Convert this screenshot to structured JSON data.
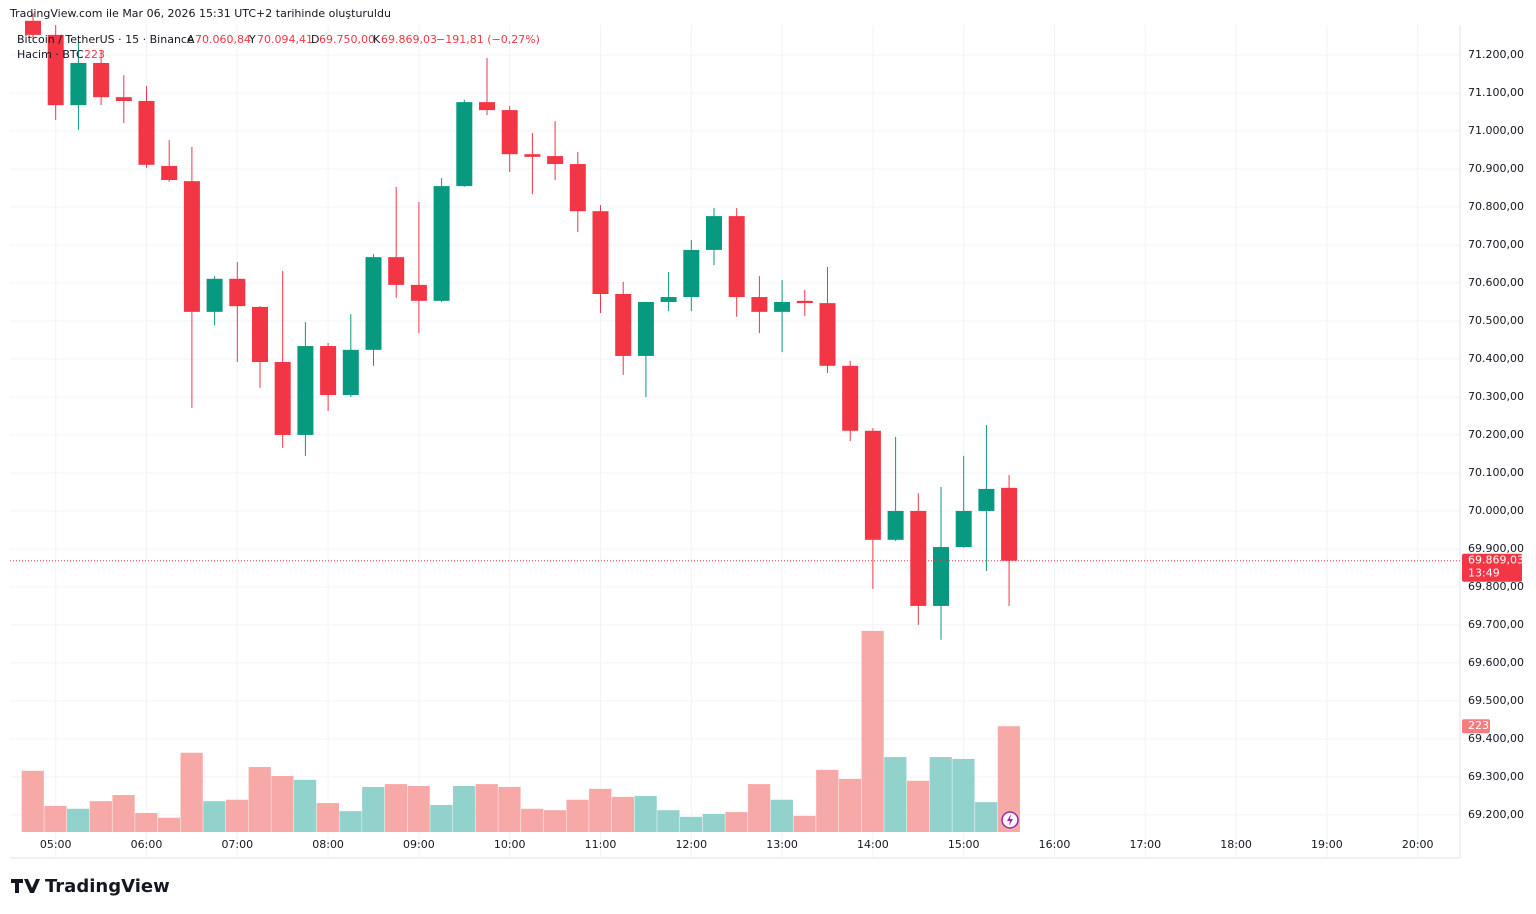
{
  "header": "TradingView.com ile Mar 06, 2026 15:31 UTC+2 tarihinde oluşturuldu",
  "logo": "TradingView",
  "chart_data": {
    "type": "candlestick",
    "title": "Bitcoin / TetherUS · 15 · Binance",
    "legend_ohlc": [
      {
        "key": "A",
        "text": "70.060,84"
      },
      {
        "key": "Y",
        "text": "70.094,41"
      },
      {
        "key": "D",
        "text": "69.750,00"
      },
      {
        "key": "K",
        "text": "69.869,03"
      }
    ],
    "legend_change": "−191,81 (−0,27%)",
    "categories": [
      null,
      "05:00",
      null,
      null,
      null,
      "06:00",
      null,
      null,
      null,
      "07:00",
      null,
      null,
      null,
      "08:00",
      null,
      null,
      null,
      "09:00",
      null,
      null,
      null,
      "10:00",
      null,
      null,
      null,
      "11:00",
      null,
      null,
      null,
      "12:00",
      null,
      null,
      null,
      "13:00",
      null,
      null,
      null,
      "14:00",
      null,
      null,
      null,
      "15:00",
      null,
      null
    ],
    "future_labels": [
      "16:00",
      "17:00",
      "18:00",
      "19:00",
      "20:00"
    ],
    "open": [
      71290,
      71253,
      71068,
      71179,
      71089,
      71079,
      70908,
      70868,
      70524,
      70611,
      70537,
      70392,
      70200,
      70434,
      70305,
      70424,
      70668,
      70595,
      70553,
      70855,
      71076,
      71055,
      70939,
      70934,
      70913,
      70789,
      70571,
      70408,
      70550,
      70563,
      70687,
      70776,
      70563,
      70524,
      70553,
      70547,
      70382,
      70211,
      69924,
      70000,
      69750,
      69905,
      70000,
      70060.84
    ],
    "high": [
      71310,
      71279,
      71239,
      71213,
      71147,
      71118,
      70976,
      70958,
      70618,
      70655,
      70539,
      70632,
      70497,
      70442,
      70518,
      70676,
      70853,
      70813,
      70876,
      71082,
      71192,
      71066,
      70995,
      71026,
      70945,
      70805,
      70603,
      70550,
      70629,
      70713,
      70797,
      70797,
      70618,
      70608,
      70582,
      70642,
      70395,
      70218,
      70195,
      70047,
      70063,
      70145,
      70226,
      70094.41
    ],
    "low": [
      71240,
      71029,
      71003,
      71068,
      71021,
      70903,
      70866,
      70271,
      70489,
      70392,
      70324,
      70166,
      70145,
      70263,
      70300,
      70382,
      70561,
      70468,
      70550,
      70853,
      71042,
      70892,
      70834,
      70871,
      70734,
      70521,
      70358,
      70300,
      70526,
      70526,
      70647,
      70511,
      70468,
      70418,
      70513,
      70363,
      70184,
      69795,
      69921,
      69700,
      69661,
      69903,
      69842,
      69750
    ],
    "close": [
      71253,
      71068,
      71179,
      71089,
      71079,
      70911,
      70871,
      70524,
      70611,
      70539,
      70392,
      70200,
      70434,
      70305,
      70424,
      70668,
      70595,
      70553,
      70855,
      71076,
      71055,
      70939,
      70932,
      70913,
      70789,
      70571,
      70408,
      70550,
      70563,
      70687,
      70776,
      70563,
      70524,
      70550,
      70547,
      70382,
      70211,
      69924,
      70000,
      69750,
      69905,
      70000,
      70058,
      69869.03
    ],
    "up_color": "#089981",
    "down_color": "#f23645",
    "ylim": [
      69155,
      71279
    ],
    "yticks": [
      {
        "value": 71200,
        "label": "71.200,00"
      },
      {
        "value": 71100,
        "label": "71.100,00"
      },
      {
        "value": 71000,
        "label": "71.000,00"
      },
      {
        "value": 70900,
        "label": "70.900,00"
      },
      {
        "value": 70800,
        "label": "70.800,00"
      },
      {
        "value": 70700,
        "label": "70.700,00"
      },
      {
        "value": 70600,
        "label": "70.600,00"
      },
      {
        "value": 70500,
        "label": "70.500,00"
      },
      {
        "value": 70400,
        "label": "70.400,00"
      },
      {
        "value": 70300,
        "label": "70.300,00"
      },
      {
        "value": 70200,
        "label": "70.200,00"
      },
      {
        "value": 70100,
        "label": "70.100,00"
      },
      {
        "value": 70000,
        "label": "70.000,00"
      },
      {
        "value": 69900,
        "label": "69.900,00"
      },
      {
        "value": 69800,
        "label": "69.800,00"
      },
      {
        "value": 69700,
        "label": "69.700,00"
      },
      {
        "value": 69600,
        "label": "69.600,00"
      },
      {
        "value": 69500,
        "label": "69.500,00"
      },
      {
        "value": 69400,
        "label": "69.400,00"
      },
      {
        "value": 69300,
        "label": "69.300,00"
      },
      {
        "value": 69200,
        "label": "69.200,00"
      }
    ],
    "grid": true,
    "last_price": {
      "value": 69869.03,
      "label": "69.869,03"
    },
    "countdown": "13:49",
    "volume": {
      "name": "Hacim · BTC",
      "values": [
        129,
        55,
        49,
        65,
        78,
        40,
        30,
        167,
        65,
        68,
        137,
        118,
        110,
        61,
        44,
        95,
        101,
        97,
        57,
        97,
        101,
        95,
        49,
        46,
        68,
        91,
        74,
        76,
        46,
        32,
        38,
        42,
        101,
        68,
        34,
        131,
        112,
        424,
        158,
        108,
        158,
        154,
        63,
        223
      ],
      "vlim": [
        0,
        506
      ],
      "up_color": "#92d2cc",
      "down_color": "#f7a9a7"
    }
  }
}
